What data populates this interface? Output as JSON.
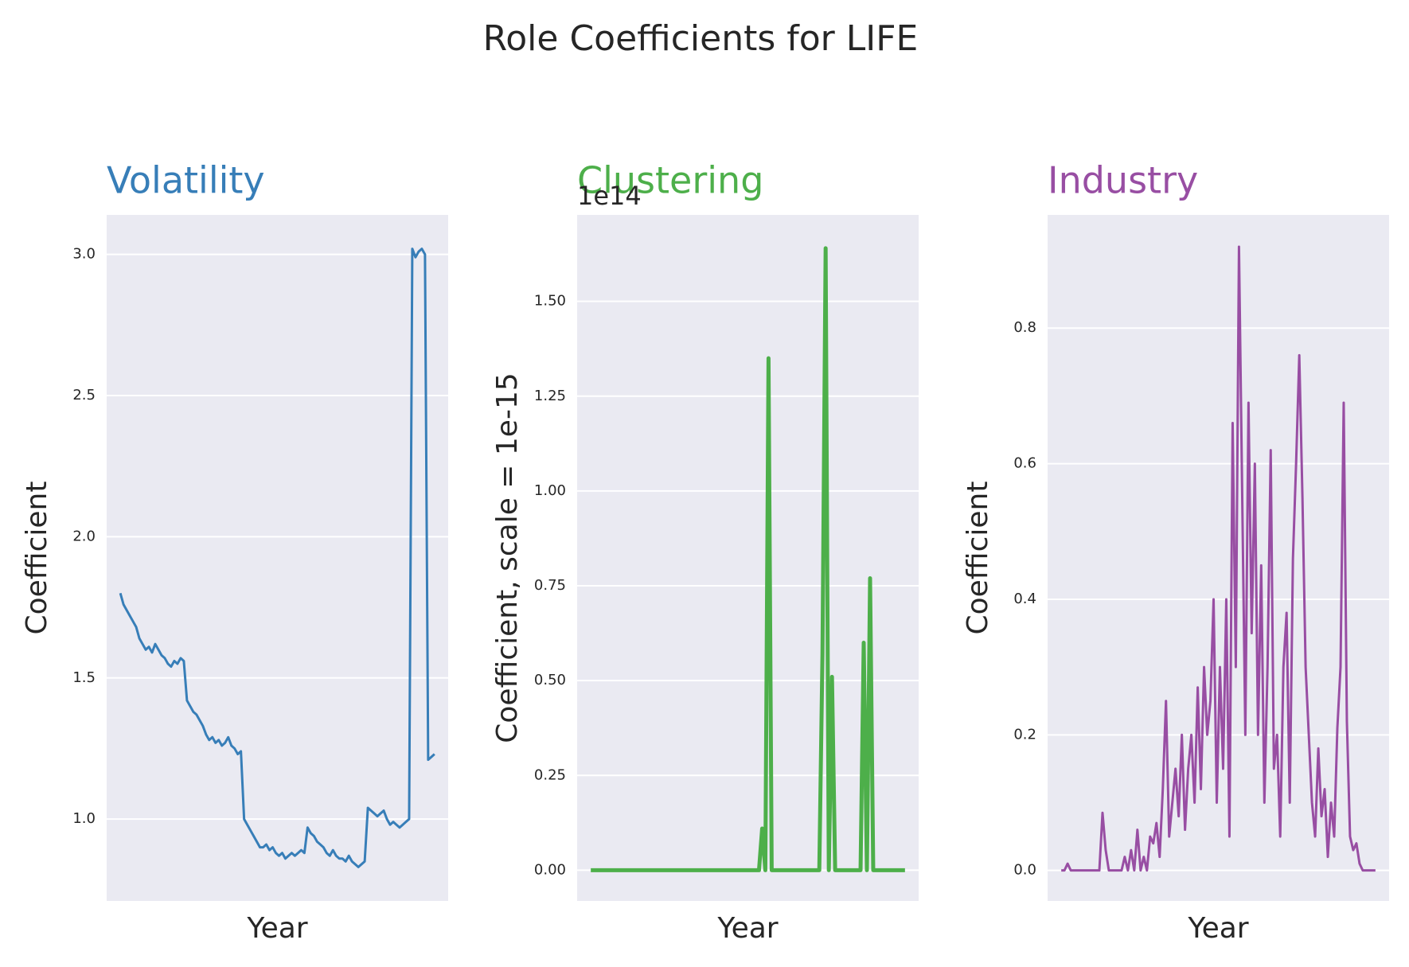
{
  "title": "Role Coefficients for LIFE",
  "chart_data": [
    {
      "type": "line",
      "title": "Volatility",
      "x_label": "Year",
      "y_label": "Coefficient",
      "color": "#377eb8",
      "line_width": 3,
      "grid": true,
      "ylim": [
        0.71,
        3.14
      ],
      "yticks": [
        {
          "value": 1,
          "label": "1.0"
        },
        1.5,
        {
          "value": 2,
          "label": "2.0"
        },
        2.5,
        {
          "value": 3,
          "label": "3.0"
        }
      ],
      "values": [
        1.8,
        1.76,
        1.74,
        1.72,
        1.7,
        1.68,
        1.64,
        1.62,
        1.6,
        1.61,
        1.59,
        1.62,
        1.6,
        1.58,
        1.57,
        1.55,
        1.54,
        1.56,
        1.55,
        1.57,
        1.56,
        1.42,
        1.4,
        1.38,
        1.37,
        1.35,
        1.33,
        1.3,
        1.28,
        1.29,
        1.27,
        1.28,
        1.26,
        1.27,
        1.29,
        1.26,
        1.25,
        1.23,
        1.24,
        1.0,
        0.98,
        0.96,
        0.94,
        0.92,
        0.9,
        0.9,
        0.91,
        0.89,
        0.9,
        0.88,
        0.87,
        0.88,
        0.86,
        0.87,
        0.88,
        0.87,
        0.88,
        0.89,
        0.88,
        0.97,
        0.95,
        0.94,
        0.92,
        0.91,
        0.9,
        0.88,
        0.87,
        0.89,
        0.87,
        0.86,
        0.86,
        0.85,
        0.87,
        0.85,
        0.84,
        0.83,
        0.84,
        0.85,
        1.04,
        1.03,
        1.02,
        1.01,
        1.02,
        1.03,
        1.0,
        0.98,
        0.99,
        0.98,
        0.97,
        0.98,
        0.99,
        1.0,
        3.02,
        2.99,
        3.01,
        3.02,
        3.0,
        1.21,
        1.22,
        1.23
      ]
    },
    {
      "type": "line",
      "title": "Clustering",
      "x_label": "Year",
      "y_label": "Coefficient, scale = 1e-15",
      "y_offset_label": "1e14",
      "color": "#4daf4a",
      "line_width": 5,
      "grid": true,
      "ylim": [
        -0.081,
        1.728
      ],
      "yticks": [
        {
          "value": 0,
          "label": "0.00"
        },
        0.25,
        {
          "value": 0.5,
          "label": "0.50"
        },
        0.75,
        {
          "value": 1,
          "label": "1.00"
        },
        1.25,
        {
          "value": 1.5,
          "label": "1.50"
        }
      ],
      "values": [
        0,
        0,
        0,
        0,
        0,
        0,
        0,
        0,
        0,
        0,
        0,
        0,
        0,
        0,
        0,
        0,
        0,
        0,
        0,
        0,
        0,
        0,
        0,
        0,
        0,
        0,
        0,
        0,
        0,
        0,
        0,
        0,
        0,
        0,
        0,
        0,
        0,
        0,
        0,
        0,
        0,
        0,
        0,
        0,
        0,
        0,
        0,
        0,
        0,
        0,
        0,
        0,
        0,
        0,
        0.11,
        0,
        1.35,
        0,
        0,
        0,
        0,
        0,
        0,
        0,
        0,
        0,
        0,
        0,
        0,
        0,
        0,
        0,
        0,
        0.57,
        1.64,
        0,
        0.51,
        0,
        0,
        0,
        0,
        0,
        0,
        0,
        0,
        0,
        0.6,
        0,
        0.77,
        0,
        0,
        0,
        0,
        0,
        0,
        0,
        0,
        0,
        0,
        0
      ]
    },
    {
      "type": "line",
      "title": "Industry",
      "x_label": "Year",
      "y_label": "Coefficient",
      "color": "#984ea3",
      "line_width": 3,
      "grid": true,
      "ylim": [
        -0.045,
        0.967
      ],
      "yticks": [
        {
          "value": 0,
          "label": "0.0"
        },
        0.2,
        0.4,
        0.6,
        0.8
      ],
      "values": [
        0,
        0,
        0.01,
        0,
        0,
        0,
        0,
        0,
        0,
        0,
        0,
        0,
        0,
        0.085,
        0.03,
        0,
        0,
        0,
        0,
        0,
        0.02,
        0,
        0.03,
        0,
        0.06,
        0,
        0.02,
        0,
        0.05,
        0.04,
        0.07,
        0.02,
        0.12,
        0.25,
        0.05,
        0.1,
        0.15,
        0.08,
        0.2,
        0.06,
        0.15,
        0.2,
        0.1,
        0.27,
        0.12,
        0.3,
        0.2,
        0.25,
        0.4,
        0.1,
        0.3,
        0.15,
        0.4,
        0.05,
        0.66,
        0.3,
        0.92,
        0.56,
        0.2,
        0.69,
        0.35,
        0.6,
        0.2,
        0.45,
        0.1,
        0.3,
        0.62,
        0.15,
        0.2,
        0.05,
        0.3,
        0.38,
        0.1,
        0.46,
        0.6,
        0.76,
        0.55,
        0.3,
        0.2,
        0.1,
        0.05,
        0.18,
        0.08,
        0.12,
        0.02,
        0.1,
        0.05,
        0.21,
        0.3,
        0.69,
        0.22,
        0.05,
        0.03,
        0.04,
        0.01,
        0,
        0,
        0,
        0,
        0
      ]
    }
  ]
}
